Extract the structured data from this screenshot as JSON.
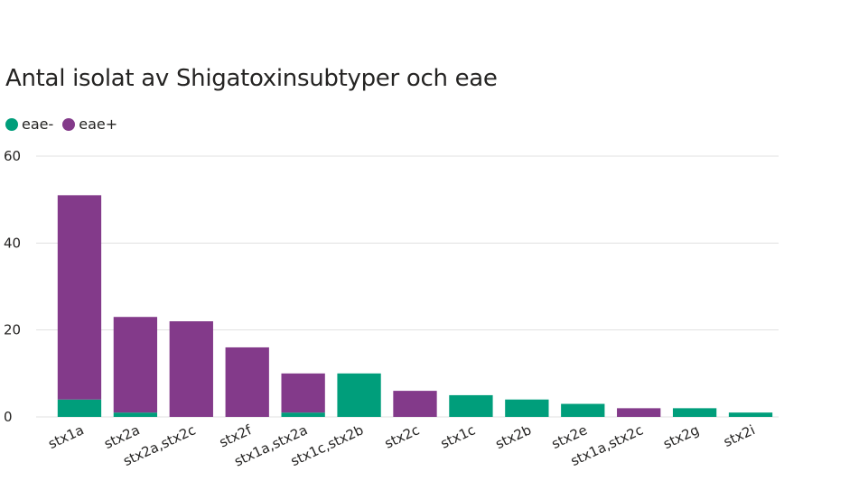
{
  "chart_data": {
    "type": "bar",
    "stacked": true,
    "title": "Antal isolat av Shigatoxinsubtyper och eae",
    "xlabel": "",
    "ylabel": "",
    "ylim": [
      0,
      60
    ],
    "yticks": [
      0,
      20,
      40,
      60
    ],
    "grid": true,
    "legend": "top-left",
    "categories": [
      "stx1a",
      "stx2a",
      "stx2a,stx2c",
      "stx2f",
      "stx1a,stx2a",
      "stx1c,stx2b",
      "stx2c",
      "stx1c",
      "stx2b",
      "stx2e",
      "stx1a,stx2c",
      "stx2g",
      "stx2i"
    ],
    "series": [
      {
        "name": "eae-",
        "color": "#009e7b",
        "values": [
          4,
          1,
          0,
          0,
          1,
          10,
          0,
          5,
          4,
          3,
          0,
          2,
          1
        ]
      },
      {
        "name": "eae+",
        "color": "#833a8a",
        "values": [
          47,
          22,
          22,
          16,
          9,
          0,
          6,
          0,
          0,
          0,
          2,
          0,
          0
        ]
      }
    ]
  }
}
